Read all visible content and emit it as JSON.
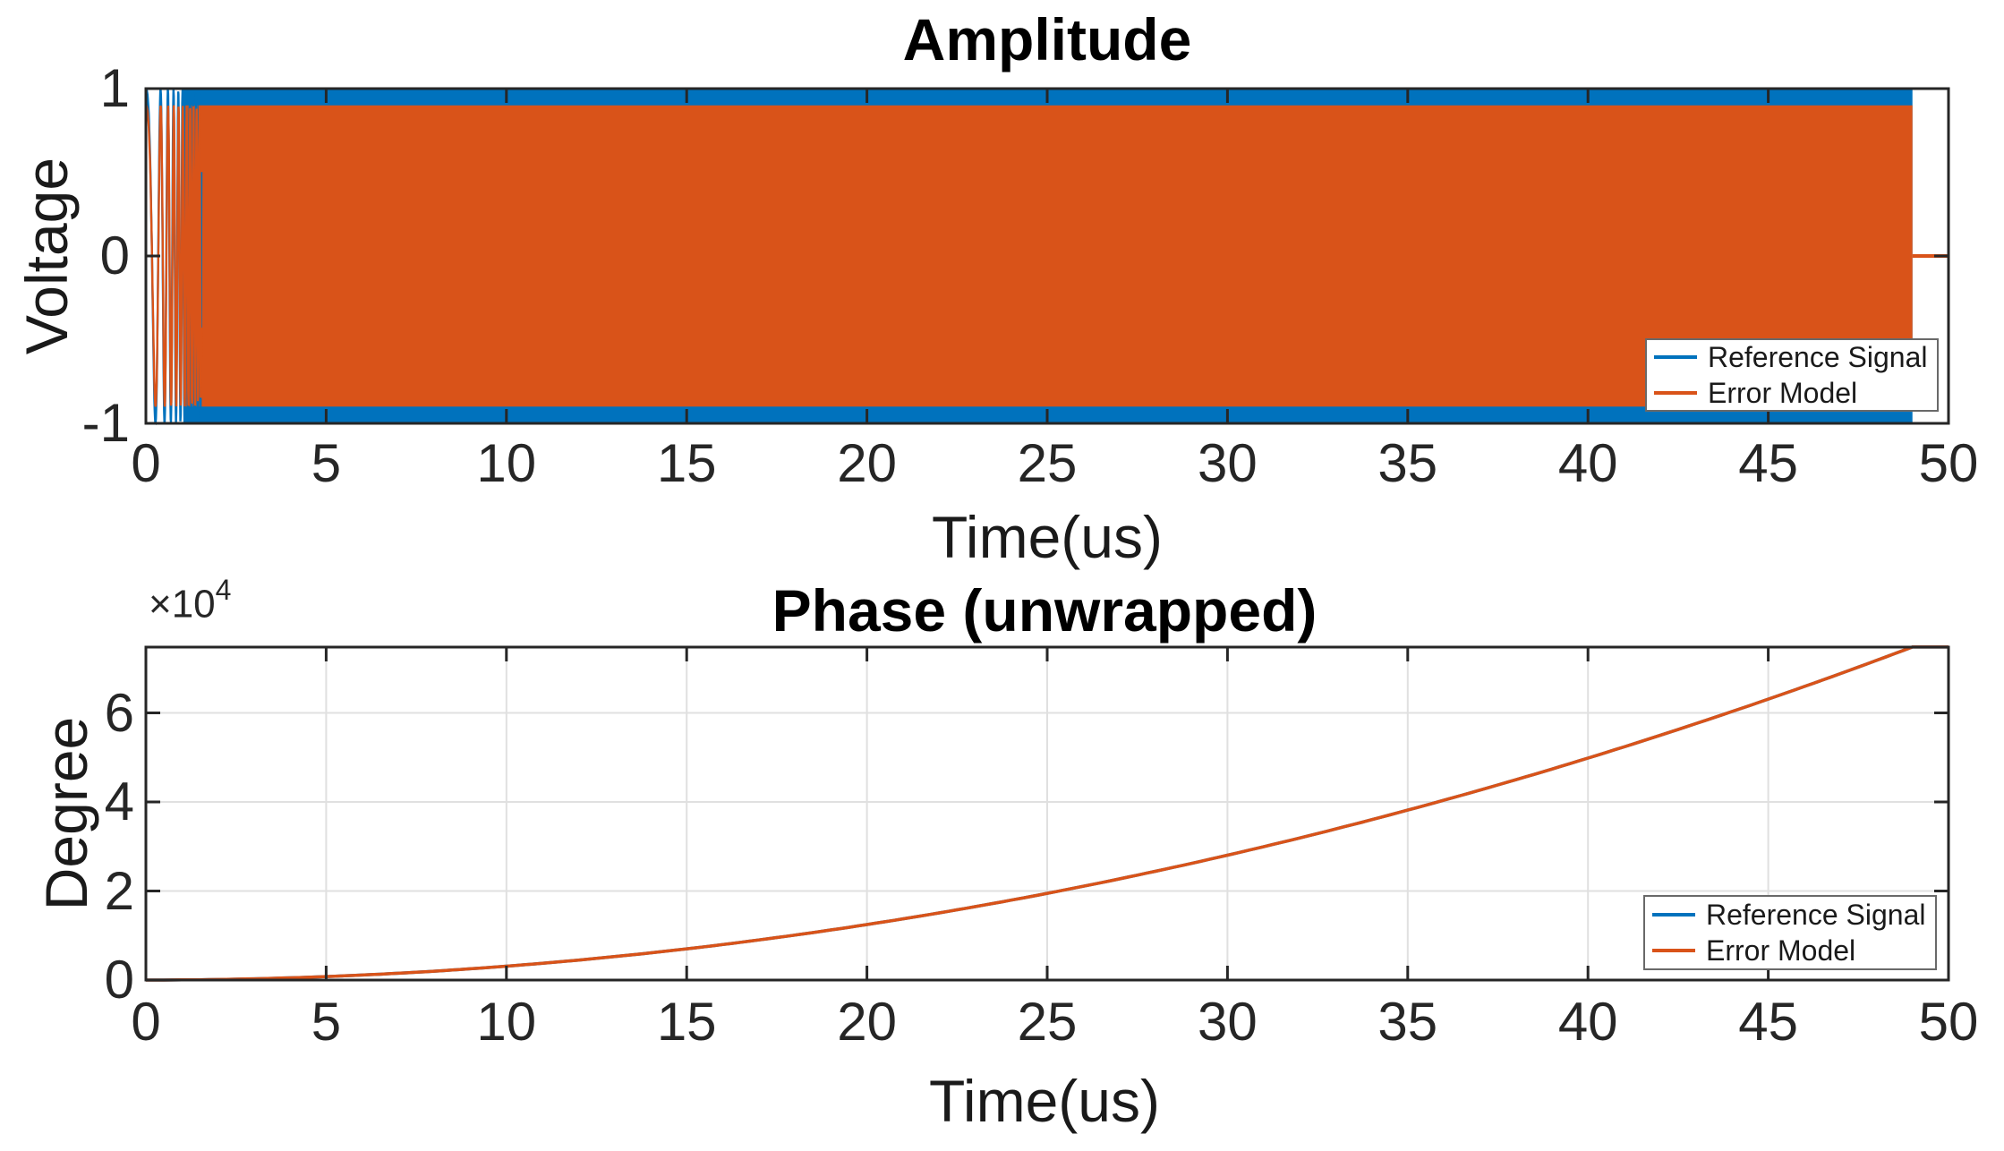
{
  "figure": {
    "background": "#ffffff"
  },
  "colors": {
    "reference_signal": "#0072BD",
    "error_model": "#D95319",
    "axis": "#262626",
    "grid": "#e0e0e0",
    "title_text": "#000000",
    "label_text": "#1a1a1a",
    "legend_border": "#696969"
  },
  "chart_data": [
    {
      "type": "line",
      "title": "Amplitude",
      "xlabel": "Time(us)",
      "ylabel": "Voltage",
      "xlim": [
        0,
        50
      ],
      "ylim": [
        -1,
        1
      ],
      "xticks": [
        0,
        5,
        10,
        15,
        20,
        25,
        30,
        35,
        40,
        45,
        50
      ],
      "xtick_labels": [
        "0",
        "5",
        "10",
        "15",
        "20",
        "25",
        "30",
        "35",
        "40",
        "45",
        "50"
      ],
      "yticks": [
        1,
        0,
        -1
      ],
      "ytick_labels": [
        "1",
        "0",
        "-1"
      ],
      "grid": false,
      "legend": {
        "position": "southeast",
        "entries": [
          {
            "label": "Reference Signal",
            "color": "#0072BD"
          },
          {
            "label": "Error Model",
            "color": "#D95319"
          }
        ]
      },
      "series": [
        {
          "name": "Reference Signal",
          "kind": "linear-FM chirp, oscillation too dense to resolve (solid band)",
          "amplitude": 1.0,
          "t_start_us": 0,
          "t_end_us": 49
        },
        {
          "name": "Error Model",
          "kind": "linear-FM chirp, oscillation too dense to resolve (solid band)",
          "amplitude": 0.9,
          "t_start_us": 0,
          "t_end_us": 49,
          "tail_value": 0,
          "tail_start_us": 49,
          "tail_end_us": 50
        }
      ]
    },
    {
      "type": "line",
      "title": "Phase (unwrapped)",
      "xlabel": "Time(us)",
      "ylabel": "Degree",
      "y_multiplier_label": "×10",
      "y_multiplier_exp": "4",
      "xlim": [
        0,
        50
      ],
      "ylim": [
        0,
        74800
      ],
      "xticks": [
        0,
        5,
        10,
        15,
        20,
        25,
        30,
        35,
        40,
        45,
        50
      ],
      "xtick_labels": [
        "0",
        "5",
        "10",
        "15",
        "20",
        "25",
        "30",
        "35",
        "40",
        "45",
        "50"
      ],
      "yticks": [
        0,
        20000,
        40000,
        60000
      ],
      "ytick_labels": [
        "0",
        "2",
        "4",
        "6"
      ],
      "grid": true,
      "legend": {
        "position": "southeast",
        "entries": [
          {
            "label": "Reference Signal",
            "color": "#0072BD"
          },
          {
            "label": "Error Model",
            "color": "#D95319"
          }
        ]
      },
      "series": [
        {
          "name": "Reference Signal",
          "model": "quadratic phase  phi(t) = 74800*(t/49)^2 deg, flat after t=49",
          "end_value_deg": 74800,
          "t_end_us": 49,
          "sample_points": [
            [
              0,
              0
            ],
            [
              5,
              779
            ],
            [
              10,
              3115
            ],
            [
              15,
              7009
            ],
            [
              20,
              12461
            ],
            [
              25,
              19471
            ],
            [
              30,
              28038
            ],
            [
              35,
              38163
            ],
            [
              40,
              49846
            ],
            [
              45,
              63086
            ],
            [
              49,
              74800
            ],
            [
              50,
              74800
            ]
          ]
        },
        {
          "name": "Error Model",
          "model": "quadratic phase  phi(t) = 74800*(t/49)^2 deg, flat after t=49 (overlaps Reference Signal)",
          "end_value_deg": 74800,
          "t_end_us": 49,
          "sample_points": [
            [
              0,
              0
            ],
            [
              5,
              779
            ],
            [
              10,
              3115
            ],
            [
              15,
              7009
            ],
            [
              20,
              12461
            ],
            [
              25,
              19471
            ],
            [
              30,
              28038
            ],
            [
              35,
              38163
            ],
            [
              40,
              49846
            ],
            [
              45,
              63086
            ],
            [
              49,
              74800
            ],
            [
              50,
              74800
            ]
          ]
        }
      ]
    }
  ]
}
